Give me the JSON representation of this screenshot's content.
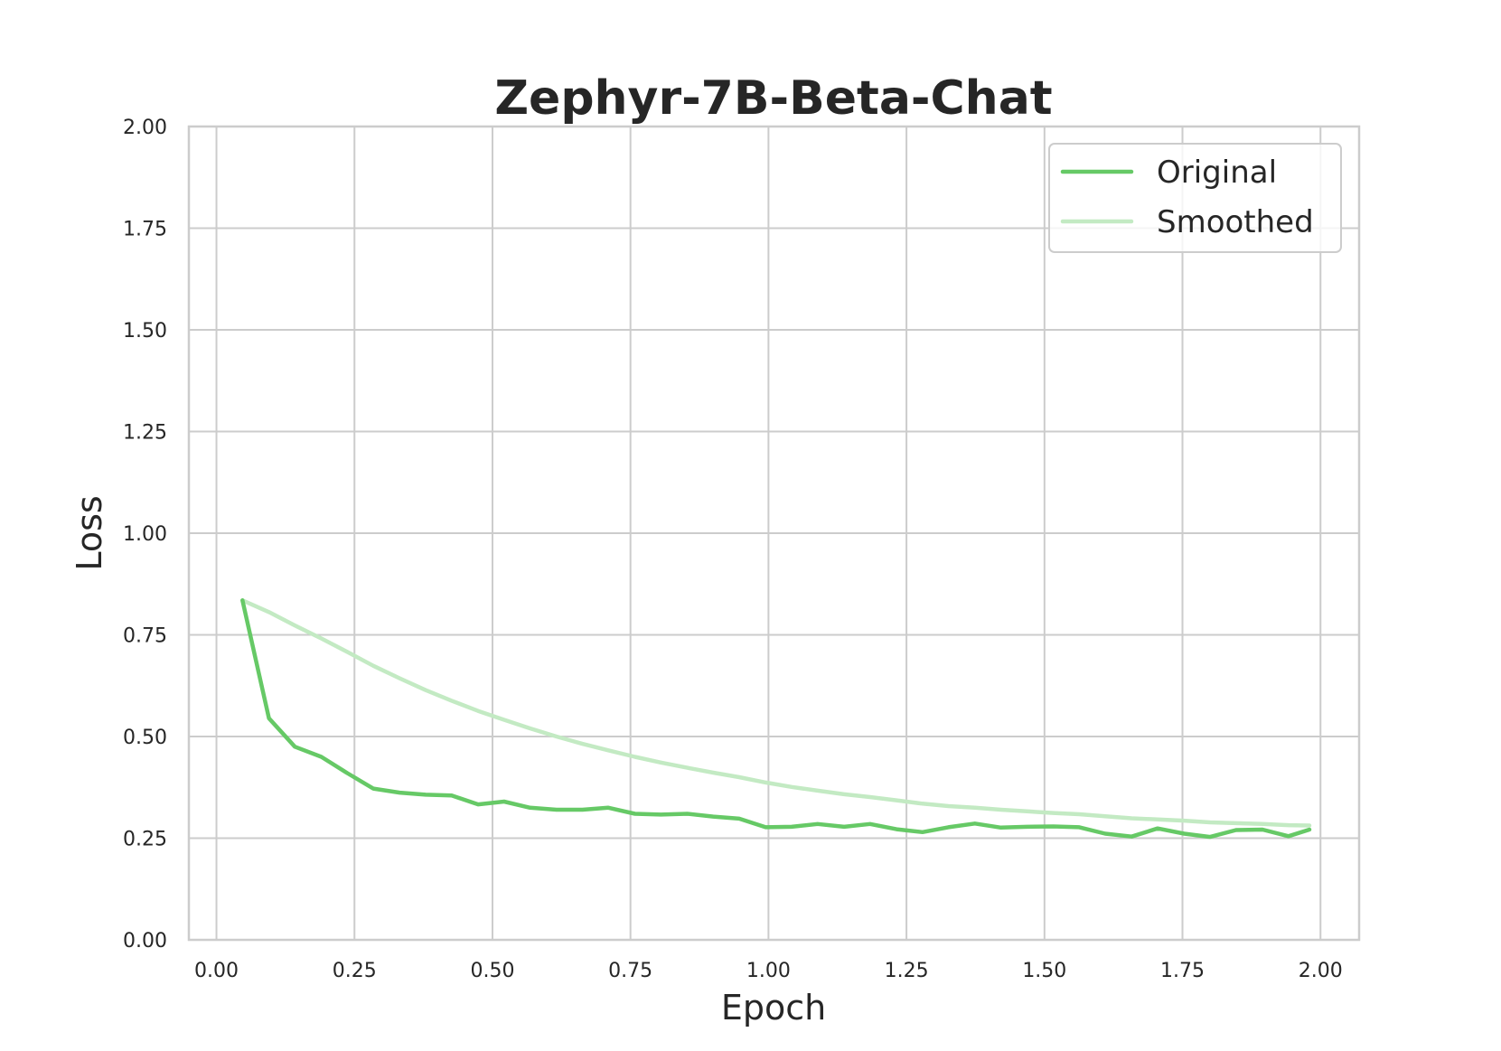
{
  "chart_data": {
    "type": "line",
    "title": "Zephyr-7B-Beta-Chat",
    "xlabel": "Epoch",
    "ylabel": "Loss",
    "xlim": [
      -0.05,
      2.07
    ],
    "ylim": [
      0.0,
      2.0
    ],
    "xticks": [
      "0.00",
      "0.25",
      "0.50",
      "0.75",
      "1.00",
      "1.25",
      "1.50",
      "1.75",
      "2.00"
    ],
    "yticks": [
      "0.00",
      "0.25",
      "0.50",
      "0.75",
      "1.00",
      "1.25",
      "1.50",
      "1.75",
      "2.00"
    ],
    "grid": true,
    "legend_position": "top-right",
    "series": [
      {
        "name": "Original",
        "color": "#66c966",
        "x": [
          0.047,
          0.095,
          0.142,
          0.19,
          0.237,
          0.284,
          0.332,
          0.379,
          0.426,
          0.474,
          0.521,
          0.568,
          0.616,
          0.663,
          0.71,
          0.758,
          0.805,
          0.853,
          0.9,
          0.947,
          0.995,
          1.042,
          1.089,
          1.137,
          1.184,
          1.232,
          1.279,
          1.326,
          1.374,
          1.421,
          1.468,
          1.516,
          1.563,
          1.61,
          1.658,
          1.705,
          1.753,
          1.8,
          1.847,
          1.895,
          1.942,
          1.98
        ],
        "y": [
          0.835,
          0.545,
          0.475,
          0.45,
          0.41,
          0.372,
          0.362,
          0.357,
          0.355,
          0.333,
          0.34,
          0.325,
          0.32,
          0.32,
          0.325,
          0.31,
          0.308,
          0.31,
          0.303,
          0.298,
          0.277,
          0.278,
          0.285,
          0.278,
          0.285,
          0.272,
          0.265,
          0.277,
          0.286,
          0.276,
          0.278,
          0.279,
          0.277,
          0.261,
          0.254,
          0.274,
          0.261,
          0.253,
          0.27,
          0.271,
          0.255,
          0.271
        ]
      },
      {
        "name": "Smoothed",
        "color": "#c3eac3",
        "x": [
          0.047,
          0.095,
          0.142,
          0.19,
          0.237,
          0.284,
          0.332,
          0.379,
          0.426,
          0.474,
          0.521,
          0.568,
          0.616,
          0.663,
          0.71,
          0.758,
          0.805,
          0.853,
          0.9,
          0.947,
          0.995,
          1.042,
          1.089,
          1.137,
          1.184,
          1.232,
          1.279,
          1.326,
          1.374,
          1.421,
          1.468,
          1.516,
          1.563,
          1.61,
          1.658,
          1.705,
          1.753,
          1.8,
          1.847,
          1.895,
          1.942,
          1.98
        ],
        "y": [
          0.835,
          0.806,
          0.773,
          0.741,
          0.708,
          0.674,
          0.643,
          0.614,
          0.588,
          0.563,
          0.541,
          0.52,
          0.5,
          0.482,
          0.466,
          0.45,
          0.436,
          0.423,
          0.411,
          0.4,
          0.387,
          0.376,
          0.367,
          0.358,
          0.351,
          0.343,
          0.335,
          0.329,
          0.325,
          0.32,
          0.316,
          0.312,
          0.309,
          0.304,
          0.299,
          0.296,
          0.293,
          0.289,
          0.287,
          0.285,
          0.282,
          0.281
        ]
      }
    ]
  }
}
